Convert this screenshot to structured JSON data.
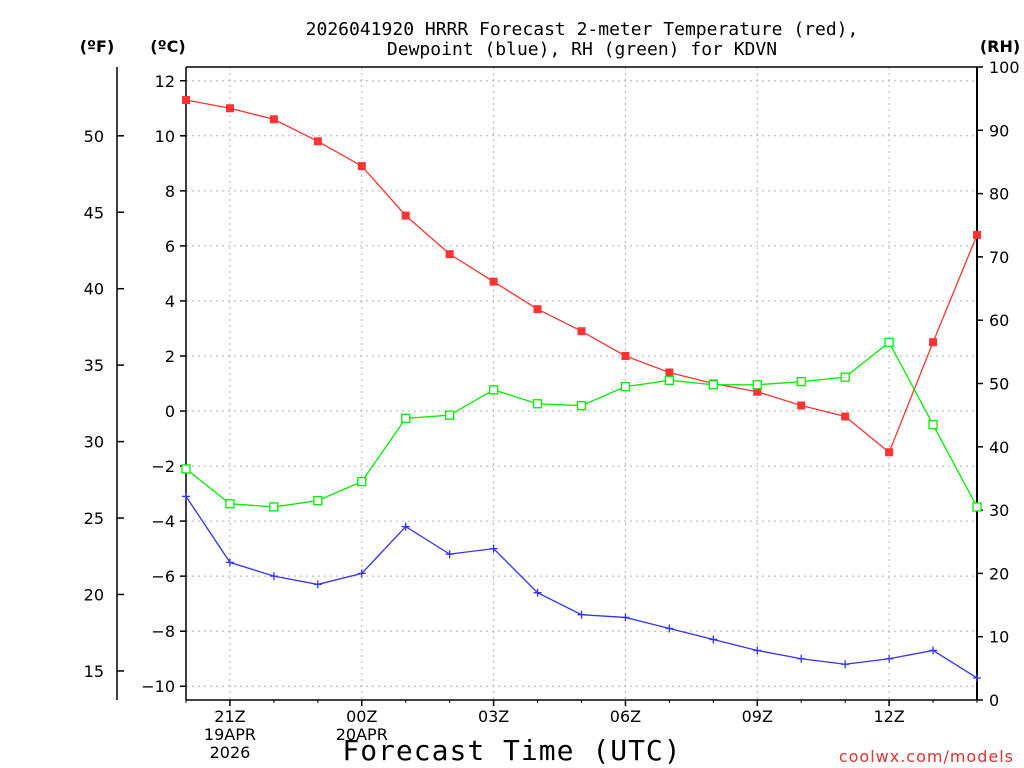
{
  "chart_data": {
    "type": "line",
    "title_line1": "2026041920 HRRR Forecast 2-meter Temperature (red),",
    "title_line2": "Dewpoint (blue), RH (green) for KDVN",
    "xlabel": "Forecast Time (UTC)",
    "watermark": "coolwx.com/models",
    "axis_units": {
      "left_f": "(ºF)",
      "left_c": "(ºC)",
      "right_rh": "(RH)"
    },
    "x_hours": [
      0,
      1,
      2,
      3,
      4,
      5,
      6,
      7,
      8,
      9,
      10,
      11,
      12,
      13,
      14,
      15,
      16,
      17,
      18
    ],
    "xlim": [
      0,
      18
    ],
    "x_ticks": [
      {
        "hour": 1,
        "lines": [
          "21Z",
          "19APR",
          "2026"
        ]
      },
      {
        "hour": 4,
        "lines": [
          "00Z",
          "20APR"
        ]
      },
      {
        "hour": 7,
        "lines": [
          "03Z"
        ]
      },
      {
        "hour": 10,
        "lines": [
          "06Z"
        ]
      },
      {
        "hour": 13,
        "lines": [
          "09Z"
        ]
      },
      {
        "hour": 16,
        "lines": [
          "12Z"
        ]
      }
    ],
    "ylim_c": [
      -10.5,
      12.5
    ],
    "y_ticks_c": [
      -10,
      -8,
      -6,
      -4,
      -2,
      0,
      2,
      4,
      6,
      8,
      10,
      12
    ],
    "y_tick_labels_c": [
      "−10",
      "−8",
      "−6",
      "−4",
      "−2",
      "0",
      "2",
      "4",
      "6",
      "8",
      "10",
      "12"
    ],
    "y_ticks_f": [
      15,
      20,
      25,
      30,
      35,
      40,
      45,
      50
    ],
    "ylim_rh": [
      0,
      100
    ],
    "y_ticks_rh": [
      0,
      10,
      20,
      30,
      40,
      50,
      60,
      70,
      80,
      90,
      100
    ],
    "series": [
      {
        "name": "Temperature",
        "color": "#ff3333",
        "marker": "filled-square",
        "axis": "c",
        "values": [
          11.3,
          11.0,
          10.6,
          9.8,
          8.9,
          7.1,
          5.7,
          4.7,
          3.7,
          2.9,
          2.0,
          1.4,
          1.0,
          0.7,
          0.2,
          -0.2,
          -1.5,
          2.5,
          6.4
        ]
      },
      {
        "name": "Dewpoint",
        "color": "#3333ff",
        "marker": "plus",
        "axis": "c",
        "values": [
          -3.1,
          -5.5,
          -6.0,
          -6.3,
          -5.9,
          -4.2,
          -5.2,
          -5.0,
          -6.6,
          -7.4,
          -7.5,
          -7.9,
          -8.3,
          -8.7,
          -9.0,
          -9.2,
          -9.0,
          -8.7,
          -9.7
        ]
      },
      {
        "name": "RH",
        "color": "#00ee00",
        "marker": "open-square",
        "axis": "rh",
        "values": [
          36.5,
          31.0,
          30.5,
          31.5,
          34.5,
          44.5,
          45.0,
          49.0,
          46.8,
          46.5,
          49.5,
          50.5,
          49.8,
          49.8,
          50.3,
          51.0,
          56.5,
          43.5,
          30.5
        ]
      }
    ]
  }
}
